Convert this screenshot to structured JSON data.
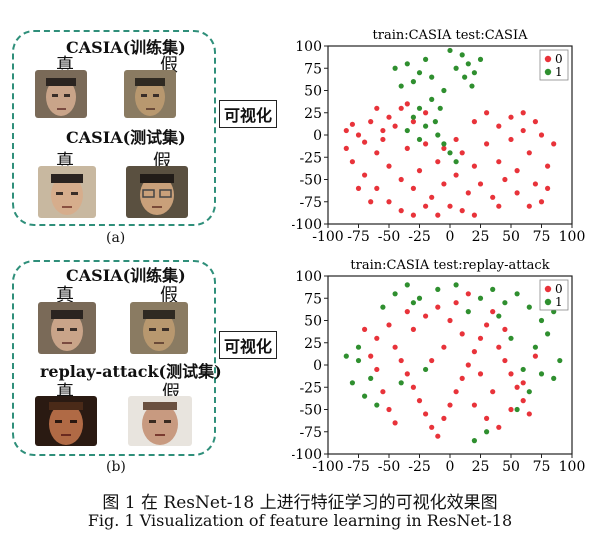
{
  "panels": [
    {
      "letter": "(a)",
      "train_label": "CASIA(训练集)",
      "test_label": "CASIA(测试集)",
      "real": "真",
      "fake": "假",
      "vis_label": "可视化"
    },
    {
      "letter": "(b)",
      "train_label": "CASIA(训练集)",
      "test_label": "replay-attack(测试集)",
      "real": "真",
      "fake": "假",
      "vis_label": "可视化"
    }
  ],
  "chart_data": [
    {
      "type": "scatter",
      "title": "train:CASIA test:CASIA",
      "xlim": [
        -100,
        100
      ],
      "ylim": [
        -100,
        100
      ],
      "xticks": [
        -100,
        -75,
        -50,
        -25,
        0,
        25,
        50,
        75,
        100
      ],
      "yticks": [
        100,
        75,
        50,
        25,
        0,
        -25,
        -50,
        -75,
        -100
      ],
      "legend": {
        "position": "top-right"
      },
      "series": [
        {
          "name": "0",
          "color": "#e8333a",
          "values": [
            [
              -85,
              5
            ],
            [
              -80,
              12
            ],
            [
              -75,
              0
            ],
            [
              -70,
              -8
            ],
            [
              -65,
              15
            ],
            [
              -60,
              -20
            ],
            [
              -55,
              5
            ],
            [
              -50,
              -35
            ],
            [
              -45,
              10
            ],
            [
              -40,
              -50
            ],
            [
              -35,
              -15
            ],
            [
              -30,
              -60
            ],
            [
              -25,
              -40
            ],
            [
              -20,
              -10
            ],
            [
              -15,
              -70
            ],
            [
              -10,
              -30
            ],
            [
              -5,
              -55
            ],
            [
              0,
              -80
            ],
            [
              5,
              -45
            ],
            [
              10,
              -20
            ],
            [
              15,
              -65
            ],
            [
              20,
              -35
            ],
            [
              25,
              -55
            ],
            [
              30,
              -10
            ],
            [
              35,
              -70
            ],
            [
              40,
              -30
            ],
            [
              45,
              -50
            ],
            [
              50,
              -5
            ],
            [
              55,
              -40
            ],
            [
              60,
              5
            ],
            [
              65,
              -20
            ],
            [
              70,
              -55
            ],
            [
              75,
              0
            ],
            [
              80,
              -35
            ],
            [
              85,
              -10
            ],
            [
              -80,
              -30
            ],
            [
              -70,
              -45
            ],
            [
              -60,
              -60
            ],
            [
              -50,
              -75
            ],
            [
              -40,
              -85
            ],
            [
              -30,
              -90
            ],
            [
              -20,
              -80
            ],
            [
              -10,
              -90
            ],
            [
              10,
              -85
            ],
            [
              20,
              -90
            ],
            [
              -60,
              30
            ],
            [
              -50,
              20
            ],
            [
              -40,
              30
            ],
            [
              -30,
              15
            ],
            [
              -20,
              25
            ],
            [
              20,
              15
            ],
            [
              30,
              25
            ],
            [
              40,
              10
            ],
            [
              50,
              20
            ],
            [
              60,
              25
            ],
            [
              70,
              15
            ],
            [
              -85,
              -15
            ],
            [
              -75,
              -60
            ],
            [
              -65,
              -75
            ],
            [
              80,
              -60
            ],
            [
              75,
              -75
            ],
            [
              65,
              -80
            ],
            [
              40,
              -80
            ],
            [
              -5,
              -15
            ],
            [
              5,
              -5
            ],
            [
              -35,
              35
            ],
            [
              -55,
              -5
            ],
            [
              55,
              -65
            ]
          ]
        },
        {
          "name": "1",
          "color": "#2f8f2f",
          "values": [
            [
              -45,
              75
            ],
            [
              -35,
              80
            ],
            [
              -25,
              70
            ],
            [
              -15,
              65
            ],
            [
              -20,
              85
            ],
            [
              -30,
              60
            ],
            [
              -40,
              55
            ],
            [
              0,
              95
            ],
            [
              10,
              90
            ],
            [
              15,
              80
            ],
            [
              20,
              70
            ],
            [
              25,
              85
            ],
            [
              5,
              75
            ],
            [
              -5,
              50
            ],
            [
              -15,
              40
            ],
            [
              -25,
              30
            ],
            [
              -30,
              20
            ],
            [
              -20,
              10
            ],
            [
              -10,
              0
            ],
            [
              -5,
              -10
            ],
            [
              0,
              -20
            ],
            [
              5,
              -30
            ],
            [
              -35,
              5
            ],
            [
              -25,
              -5
            ],
            [
              12,
              65
            ],
            [
              18,
              55
            ],
            [
              -8,
              30
            ],
            [
              -12,
              15
            ]
          ]
        }
      ]
    },
    {
      "type": "scatter",
      "title": "train:CASIA test:replay-attack",
      "xlim": [
        -100,
        100
      ],
      "ylim": [
        -100,
        100
      ],
      "xticks": [
        -100,
        -75,
        -50,
        -25,
        0,
        25,
        50,
        75,
        100
      ],
      "yticks": [
        100,
        75,
        50,
        25,
        0,
        -25,
        -50,
        -75,
        -100
      ],
      "legend": {
        "position": "top-right"
      },
      "series": [
        {
          "name": "0",
          "color": "#e8333a",
          "values": [
            [
              -70,
              40
            ],
            [
              -60,
              30
            ],
            [
              -50,
              45
            ],
            [
              -45,
              20
            ],
            [
              -40,
              5
            ],
            [
              -35,
              -10
            ],
            [
              -30,
              -25
            ],
            [
              -25,
              -40
            ],
            [
              -20,
              -55
            ],
            [
              -15,
              -70
            ],
            [
              -10,
              -80
            ],
            [
              -5,
              -60
            ],
            [
              0,
              -45
            ],
            [
              5,
              -30
            ],
            [
              10,
              -15
            ],
            [
              15,
              0
            ],
            [
              20,
              15
            ],
            [
              25,
              30
            ],
            [
              30,
              45
            ],
            [
              35,
              60
            ],
            [
              40,
              20
            ],
            [
              45,
              5
            ],
            [
              50,
              -10
            ],
            [
              55,
              -25
            ],
            [
              60,
              -40
            ],
            [
              65,
              -55
            ],
            [
              -55,
              -30
            ],
            [
              -50,
              -50
            ],
            [
              -45,
              -65
            ],
            [
              -30,
              40
            ],
            [
              -20,
              55
            ],
            [
              -10,
              65
            ],
            [
              0,
              50
            ],
            [
              10,
              35
            ],
            [
              -5,
              20
            ],
            [
              -15,
              5
            ],
            [
              20,
              -45
            ],
            [
              30,
              -60
            ],
            [
              40,
              -70
            ],
            [
              50,
              -50
            ],
            [
              60,
              -20
            ],
            [
              70,
              10
            ],
            [
              -60,
              -5
            ],
            [
              -65,
              10
            ],
            [
              5,
              70
            ],
            [
              15,
              80
            ],
            [
              -35,
              60
            ],
            [
              25,
              -10
            ],
            [
              35,
              -30
            ],
            [
              45,
              40
            ]
          ]
        },
        {
          "name": "1",
          "color": "#2f8f2f",
          "values": [
            [
              -85,
              10
            ],
            [
              -75,
              20
            ],
            [
              -65,
              -15
            ],
            [
              -55,
              65
            ],
            [
              -45,
              80
            ],
            [
              -35,
              90
            ],
            [
              -25,
              75
            ],
            [
              -10,
              85
            ],
            [
              5,
              90
            ],
            [
              15,
              60
            ],
            [
              25,
              75
            ],
            [
              35,
              85
            ],
            [
              45,
              70
            ],
            [
              55,
              80
            ],
            [
              65,
              65
            ],
            [
              75,
              50
            ],
            [
              80,
              35
            ],
            [
              70,
              20
            ],
            [
              60,
              -5
            ],
            [
              75,
              -10
            ],
            [
              85,
              -15
            ],
            [
              -80,
              -20
            ],
            [
              -70,
              -35
            ],
            [
              -60,
              -45
            ],
            [
              -40,
              -20
            ],
            [
              -20,
              -5
            ],
            [
              -30,
              70
            ],
            [
              40,
              55
            ],
            [
              50,
              30
            ],
            [
              65,
              -30
            ],
            [
              55,
              -50
            ],
            [
              -75,
              5
            ],
            [
              30,
              -75
            ],
            [
              20,
              -85
            ],
            [
              85,
              60
            ],
            [
              90,
              5
            ]
          ]
        }
      ]
    }
  ],
  "caption_cn": "图 1   在 ResNet-18 上进行特征学习的可视化效果图",
  "caption_en": "Fig. 1   Visualization of feature learning in ResNet-18"
}
